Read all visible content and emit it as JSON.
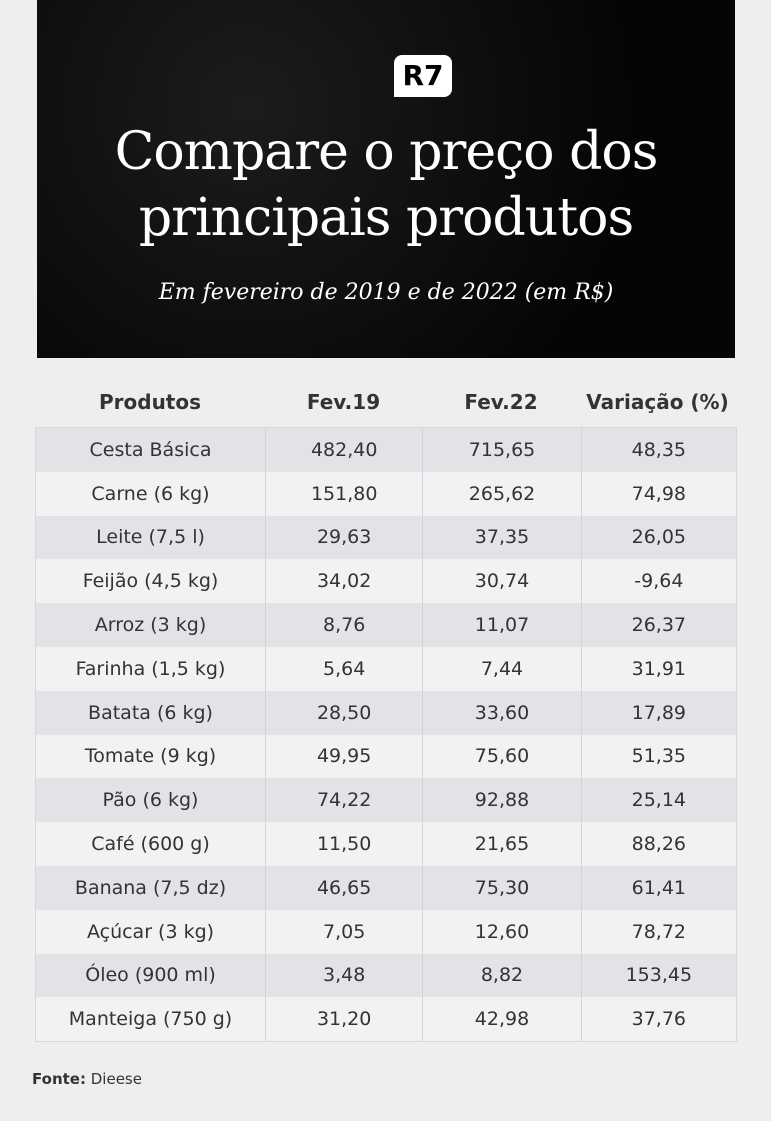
{
  "header": {
    "logo": "R7",
    "title_lines": [
      "Compare o preço dos",
      "principais produtos"
    ],
    "subtitle": "Em fevereiro de 2019 e de 2022 (em R$)"
  },
  "table": {
    "columns": [
      "Produtos",
      "Fev.19",
      "Fev.22",
      "Variação (%)"
    ],
    "rows": [
      [
        "Cesta Básica",
        "482,40",
        "715,65",
        "48,35"
      ],
      [
        "Carne (6 kg)",
        "151,80",
        "265,62",
        "74,98"
      ],
      [
        "Leite (7,5 l)",
        "29,63",
        "37,35",
        "26,05"
      ],
      [
        "Feijão (4,5 kg)",
        "34,02",
        "30,74",
        "-9,64"
      ],
      [
        "Arroz (3 kg)",
        "8,76",
        "11,07",
        "26,37"
      ],
      [
        "Farinha (1,5 kg)",
        "5,64",
        "7,44",
        "31,91"
      ],
      [
        "Batata (6 kg)",
        "28,50",
        "33,60",
        "17,89"
      ],
      [
        "Tomate (9 kg)",
        "49,95",
        "75,60",
        "51,35"
      ],
      [
        "Pão (6 kg)",
        "74,22",
        "92,88",
        "25,14"
      ],
      [
        "Café (600 g)",
        "11,50",
        "21,65",
        "88,26"
      ],
      [
        "Banana (7,5 dz)",
        "46,65",
        "75,30",
        "61,41"
      ],
      [
        "Açúcar (3 kg)",
        "7,05",
        "12,60",
        "78,72"
      ],
      [
        "Óleo (900 ml)",
        "3,48",
        "8,82",
        "153,45"
      ],
      [
        "Manteiga (750 g)",
        "31,20",
        "42,98",
        "37,76"
      ]
    ]
  },
  "source": {
    "label": "Fonte:",
    "value": "Dieese"
  }
}
